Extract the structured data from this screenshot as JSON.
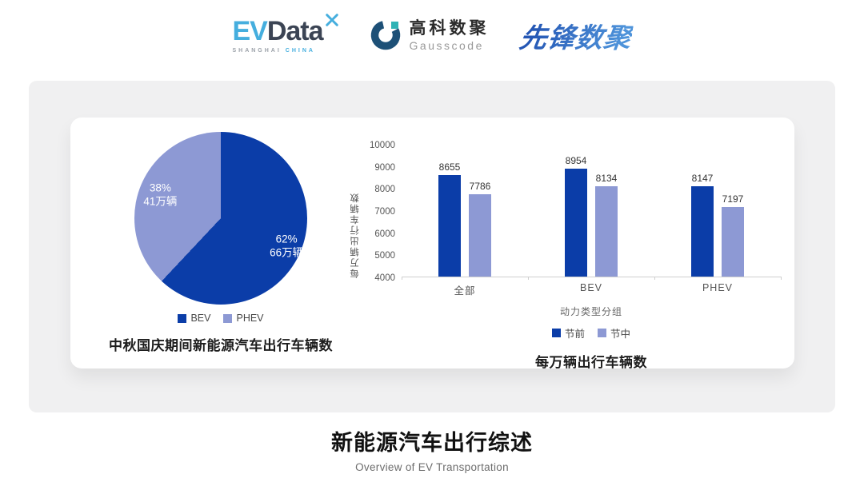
{
  "header": {
    "evdata": {
      "ev": "EV",
      "data": "Data",
      "tagline_left": "SHANGHAI",
      "tagline_right": "CHINA"
    },
    "gausscode": {
      "name_cn": "高科数聚",
      "name_en": "Gausscode"
    },
    "pioneer": {
      "name": "先锋数聚"
    }
  },
  "colors": {
    "series_pre": "#0b3da8",
    "series_mid": "#8d99d4",
    "evdata_blue": "#45aede",
    "evdata_dark": "#3b4454",
    "gauss_navy": "#1d5077",
    "gauss_teal": "#2fb3b6",
    "panel_bg": "#f0f0f1"
  },
  "chart_data": [
    {
      "type": "pie",
      "title": "中秋国庆期间新能源汽车出行车辆数",
      "unit": "万辆",
      "slices": [
        {
          "label": "BEV",
          "percent": 62,
          "value": 66,
          "percent_label": "62%",
          "value_label": "66万辆",
          "color": "#0b3da8"
        },
        {
          "label": "PHEV",
          "percent": 38,
          "value": 41,
          "percent_label": "38%",
          "value_label": "41万辆",
          "color": "#8d99d4"
        }
      ],
      "legend_position": "bottom",
      "start_angle_deg": 0
    },
    {
      "type": "bar",
      "title": "每万辆出行车辆数",
      "xlabel": "动力类型分组",
      "ylabel": "每万辆出行车辆数",
      "categories": [
        "全部",
        "BEV",
        "PHEV"
      ],
      "series": [
        {
          "name": "节前",
          "color": "#0b3da8",
          "values": [
            8655,
            8954,
            8147
          ]
        },
        {
          "name": "节中",
          "color": "#8d99d4",
          "values": [
            7786,
            8134,
            7197
          ]
        }
      ],
      "ylim": [
        4000,
        10000
      ],
      "ytick_step": 1000,
      "grid": false,
      "legend_position": "bottom"
    }
  ],
  "footer": {
    "title": "新能源汽车出行综述",
    "subtitle": "Overview of EV Transportation"
  }
}
